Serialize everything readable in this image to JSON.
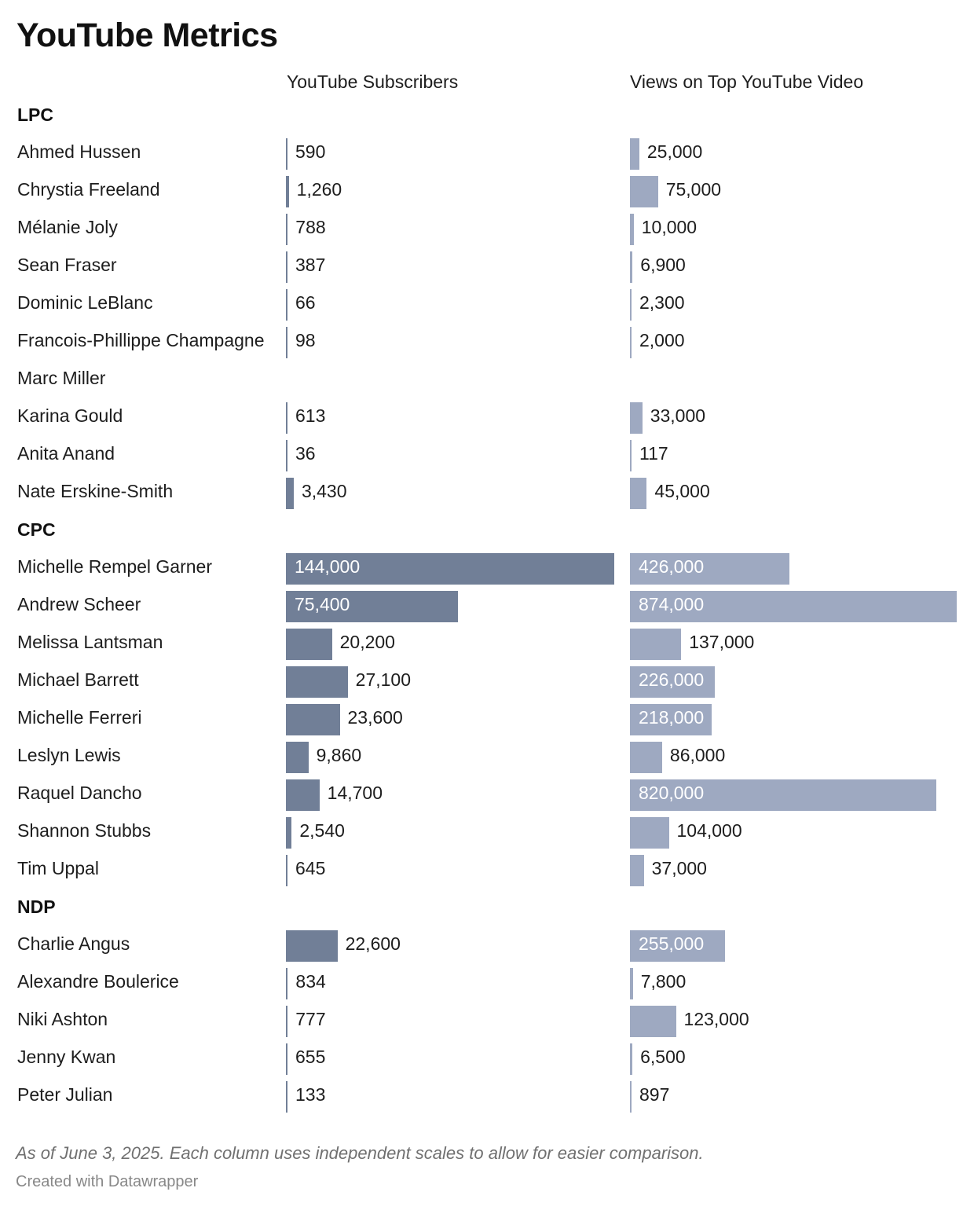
{
  "title": "YouTube Metrics",
  "columns": {
    "subscribers": "YouTube Subscribers",
    "views": "Views on Top YouTube Video"
  },
  "footer": {
    "note": "As of June 3, 2025. Each column uses independent scales to allow for easier comparison.",
    "credit": "Created with Datawrapper"
  },
  "colors": {
    "subscribers_bar": "#717f97",
    "views_bar": "#9ea9c1"
  },
  "chart_data": {
    "type": "bar",
    "title": "YouTube Metrics",
    "series": [
      {
        "name": "YouTube Subscribers",
        "max": 144000
      },
      {
        "name": "Views on Top YouTube Video",
        "max": 874000
      }
    ],
    "groups": [
      {
        "name": "LPC",
        "rows": [
          {
            "name": "Ahmed Hussen",
            "subscribers": 590,
            "subscribers_label": "590",
            "views": 25000,
            "views_label": "25,000"
          },
          {
            "name": "Chrystia Freeland",
            "subscribers": 1260,
            "subscribers_label": "1,260",
            "views": 75000,
            "views_label": "75,000"
          },
          {
            "name": "Mélanie Joly",
            "subscribers": 788,
            "subscribers_label": "788",
            "views": 10000,
            "views_label": "10,000"
          },
          {
            "name": "Sean Fraser",
            "subscribers": 387,
            "subscribers_label": "387",
            "views": 6900,
            "views_label": "6,900"
          },
          {
            "name": "Dominic LeBlanc",
            "subscribers": 66,
            "subscribers_label": "66",
            "views": 2300,
            "views_label": "2,300"
          },
          {
            "name": "Francois-Phillippe Champagne",
            "subscribers": 98,
            "subscribers_label": "98",
            "views": 2000,
            "views_label": "2,000"
          },
          {
            "name": "Marc Miller",
            "subscribers": null,
            "subscribers_label": null,
            "views": null,
            "views_label": null
          },
          {
            "name": "Karina Gould",
            "subscribers": 613,
            "subscribers_label": "613",
            "views": 33000,
            "views_label": "33,000"
          },
          {
            "name": "Anita Anand",
            "subscribers": 36,
            "subscribers_label": "36",
            "views": 117,
            "views_label": "117"
          },
          {
            "name": "Nate Erskine-Smith",
            "subscribers": 3430,
            "subscribers_label": "3,430",
            "views": 45000,
            "views_label": "45,000"
          }
        ]
      },
      {
        "name": "CPC",
        "rows": [
          {
            "name": "Michelle Rempel Garner",
            "subscribers": 144000,
            "subscribers_label": "144,000",
            "views": 426000,
            "views_label": "426,000"
          },
          {
            "name": "Andrew Scheer",
            "subscribers": 75400,
            "subscribers_label": "75,400",
            "views": 874000,
            "views_label": "874,000"
          },
          {
            "name": "Melissa Lantsman",
            "subscribers": 20200,
            "subscribers_label": "20,200",
            "views": 137000,
            "views_label": "137,000"
          },
          {
            "name": "Michael Barrett",
            "subscribers": 27100,
            "subscribers_label": "27,100",
            "views": 226000,
            "views_label": "226,000"
          },
          {
            "name": "Michelle Ferreri",
            "subscribers": 23600,
            "subscribers_label": "23,600",
            "views": 218000,
            "views_label": "218,000"
          },
          {
            "name": "Leslyn Lewis",
            "subscribers": 9860,
            "subscribers_label": "9,860",
            "views": 86000,
            "views_label": "86,000"
          },
          {
            "name": "Raquel Dancho",
            "subscribers": 14700,
            "subscribers_label": "14,700",
            "views": 820000,
            "views_label": "820,000"
          },
          {
            "name": "Shannon Stubbs",
            "subscribers": 2540,
            "subscribers_label": "2,540",
            "views": 104000,
            "views_label": "104,000"
          },
          {
            "name": "Tim Uppal",
            "subscribers": 645,
            "subscribers_label": "645",
            "views": 37000,
            "views_label": "37,000"
          }
        ]
      },
      {
        "name": "NDP",
        "rows": [
          {
            "name": "Charlie Angus",
            "subscribers": 22600,
            "subscribers_label": "22,600",
            "views": 255000,
            "views_label": "255,000"
          },
          {
            "name": "Alexandre Boulerice",
            "subscribers": 834,
            "subscribers_label": "834",
            "views": 7800,
            "views_label": "7,800"
          },
          {
            "name": "Niki Ashton",
            "subscribers": 777,
            "subscribers_label": "777",
            "views": 123000,
            "views_label": "123,000"
          },
          {
            "name": "Jenny Kwan",
            "subscribers": 655,
            "subscribers_label": "655",
            "views": 6500,
            "views_label": "6,500"
          },
          {
            "name": "Peter Julian",
            "subscribers": 133,
            "subscribers_label": "133",
            "views": 897,
            "views_label": "897"
          }
        ]
      }
    ]
  }
}
